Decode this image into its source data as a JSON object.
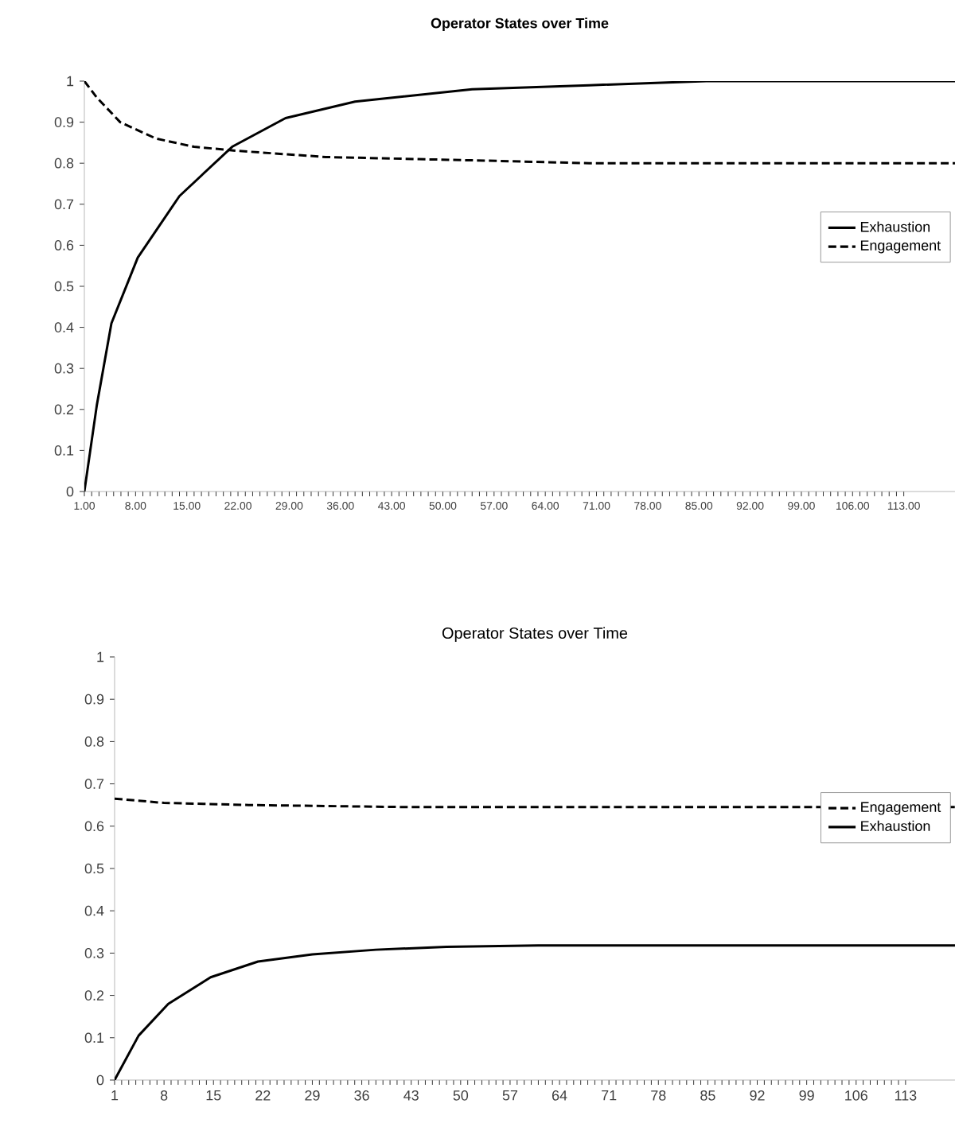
{
  "chart_data": [
    {
      "type": "line",
      "title": "Operator States over Time",
      "xlim": [
        1,
        120
      ],
      "ylim": [
        0,
        1
      ],
      "xticks": [
        {
          "value": 1,
          "label": "1.00"
        },
        {
          "value": 8,
          "label": "8.00"
        },
        {
          "value": 15,
          "label": "15.00"
        },
        {
          "value": 22,
          "label": "22.00"
        },
        {
          "value": 29,
          "label": "29.00"
        },
        {
          "value": 36,
          "label": "36.00"
        },
        {
          "value": 43,
          "label": "43.00"
        },
        {
          "value": 50,
          "label": "50.00"
        },
        {
          "value": 57,
          "label": "57.00"
        },
        {
          "value": 64,
          "label": "64.00"
        },
        {
          "value": 71,
          "label": "71.00"
        },
        {
          "value": 78,
          "label": "78.00"
        },
        {
          "value": 85,
          "label": "85.00"
        },
        {
          "value": 92,
          "label": "92.00"
        },
        {
          "value": 99,
          "label": "99.00"
        },
        {
          "value": 106,
          "label": "106.00"
        },
        {
          "value": 113,
          "label": "113.00"
        }
      ],
      "yticks": [
        0,
        0.1,
        0.2,
        0.3,
        0.4,
        0.5,
        0.6,
        0.7,
        0.8,
        0.9,
        1
      ],
      "legend": "right",
      "grid": false,
      "marker": "none",
      "series": [
        {
          "name": "Exhaustion",
          "color": "#000000",
          "line_style": "solid",
          "x": [
            1,
            2.7,
            4.7,
            8.3,
            14,
            21.2,
            28.5,
            38,
            54,
            70,
            86,
            120
          ],
          "values": [
            0,
            0.21,
            0.41,
            0.57,
            0.72,
            0.84,
            0.91,
            0.95,
            0.98,
            0.99,
            1,
            1
          ]
        },
        {
          "name": "Engagement",
          "color": "#000000",
          "line_style": "dashed",
          "x": [
            1,
            2.7,
            5.9,
            10.8,
            16,
            22,
            34,
            54,
            70,
            120
          ],
          "values": [
            1,
            0.96,
            0.9,
            0.86,
            0.84,
            0.83,
            0.815,
            0.807,
            0.8,
            0.8
          ]
        }
      ]
    },
    {
      "type": "line",
      "title": "Operator States over Time",
      "xlim": [
        1,
        120
      ],
      "ylim": [
        0,
        1
      ],
      "xticks": [
        1,
        8,
        15,
        22,
        29,
        36,
        43,
        50,
        57,
        64,
        71,
        78,
        85,
        92,
        99,
        106,
        113
      ],
      "yticks": [
        0,
        0.1,
        0.2,
        0.3,
        0.4,
        0.5,
        0.6,
        0.7,
        0.8,
        0.9,
        1
      ],
      "legend": "right",
      "grid": false,
      "marker": "none",
      "series": [
        {
          "name": "Engagement",
          "color": "#000000",
          "line_style": "dashed",
          "x": [
            1,
            8,
            20,
            43,
            120
          ],
          "values": [
            0.665,
            0.655,
            0.65,
            0.645,
            0.645
          ]
        },
        {
          "name": "Exhaustion",
          "color": "#000000",
          "line_style": "solid",
          "x": [
            1,
            4.4,
            8.6,
            14.6,
            21.3,
            29,
            38,
            48,
            61,
            120
          ],
          "values": [
            0,
            0.105,
            0.18,
            0.243,
            0.28,
            0.297,
            0.308,
            0.315,
            0.318,
            0.318
          ]
        }
      ]
    }
  ]
}
